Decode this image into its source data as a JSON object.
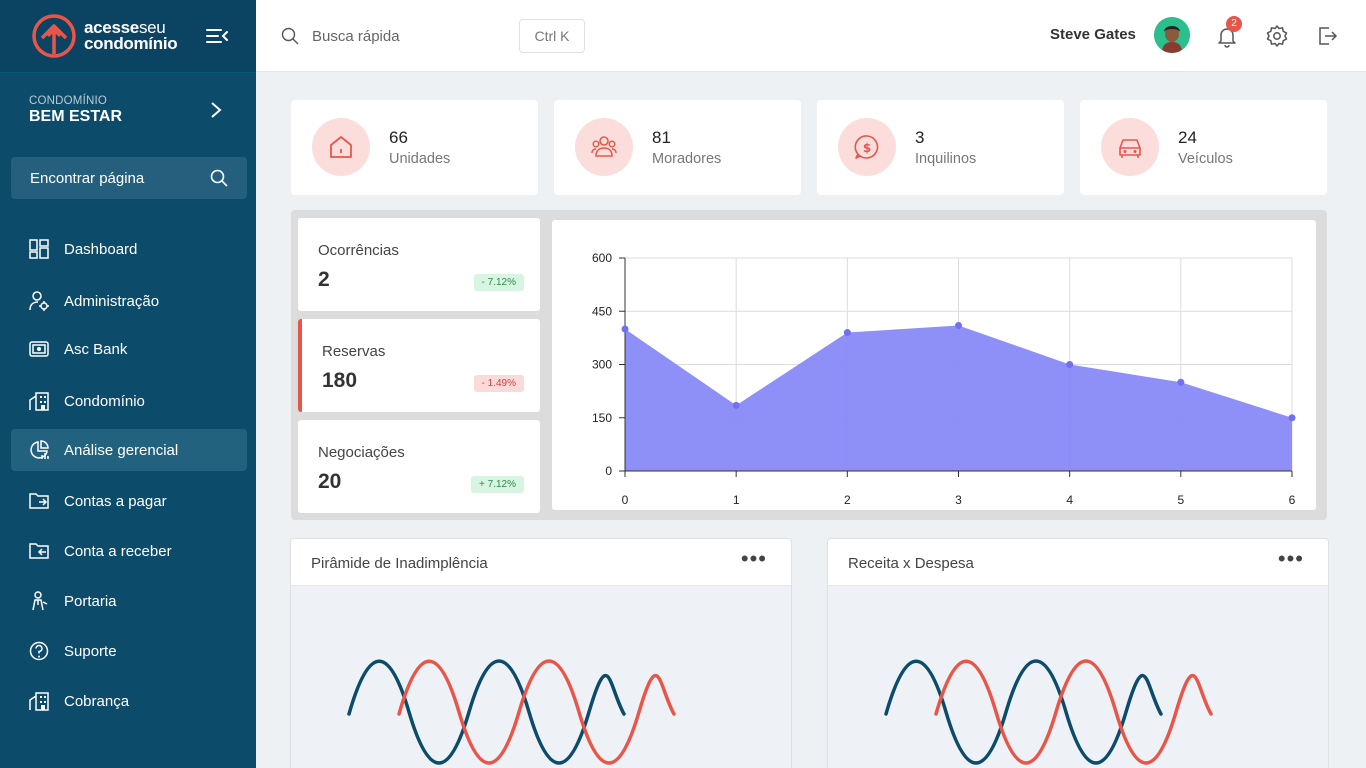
{
  "brand": {
    "line1_bold": "acesse",
    "line1_thin": "seu",
    "line2": "condomínio"
  },
  "condo": {
    "label": "CONDOMÍNIO",
    "name": "BEM ESTAR"
  },
  "find_page": {
    "label": "Encontrar página"
  },
  "nav": [
    {
      "label": "Dashboard",
      "icon": "dashboard-icon"
    },
    {
      "label": "Administração",
      "icon": "admin-icon"
    },
    {
      "label": "Asc Bank",
      "icon": "bank-icon"
    },
    {
      "label": "Condomínio",
      "icon": "building-icon"
    },
    {
      "label": "Análise gerencial",
      "icon": "analytics-icon",
      "active": true
    },
    {
      "label": "Contas a pagar",
      "icon": "folder-out-icon"
    },
    {
      "label": "Conta a receber",
      "icon": "folder-in-icon"
    },
    {
      "label": "Portaria",
      "icon": "doorman-icon"
    },
    {
      "label": "Suporte",
      "icon": "help-icon"
    },
    {
      "label": "Cobrança",
      "icon": "building-icon"
    }
  ],
  "header": {
    "search_placeholder": "Busca rápida",
    "shortcut": "Ctrl K",
    "user_name": "Steve Gates",
    "notification_count": "2"
  },
  "stats": [
    {
      "value": "66",
      "label": "Unidades",
      "icon": "house-icon"
    },
    {
      "value": "81",
      "label": "Moradores",
      "icon": "people-icon"
    },
    {
      "value": "3",
      "label": "Inquilinos",
      "icon": "money-chat-icon"
    },
    {
      "value": "24",
      "label": "Veículos",
      "icon": "car-icon"
    }
  ],
  "metrics": [
    {
      "title": "Ocorrências",
      "value": "2",
      "change": "- 7.12%",
      "trend": "up"
    },
    {
      "title": "Reservas",
      "value": "180",
      "change": "- 1.49%",
      "trend": "down"
    },
    {
      "title": "Negociações",
      "value": "20",
      "change": "+ 7.12%",
      "trend": "up"
    }
  ],
  "chart_data": {
    "type": "area",
    "x": [
      0,
      1,
      2,
      3,
      4,
      5,
      6
    ],
    "series": [
      {
        "values": [
          400,
          185,
          390,
          410,
          300,
          250,
          150
        ]
      }
    ],
    "ylim": [
      0,
      600
    ],
    "yticks": [
      0,
      150,
      300,
      450,
      600
    ],
    "grid": true,
    "color": "#8585f7"
  },
  "bottom_cards": [
    {
      "title": "Pirâmide de Inadimplência"
    },
    {
      "title": "Receita x Despesa"
    }
  ],
  "colors": {
    "sidebar": "#0d4b6b",
    "accent": "#e8564a",
    "loader_dark": "#0d4b6b",
    "loader_red": "#e8564a"
  }
}
